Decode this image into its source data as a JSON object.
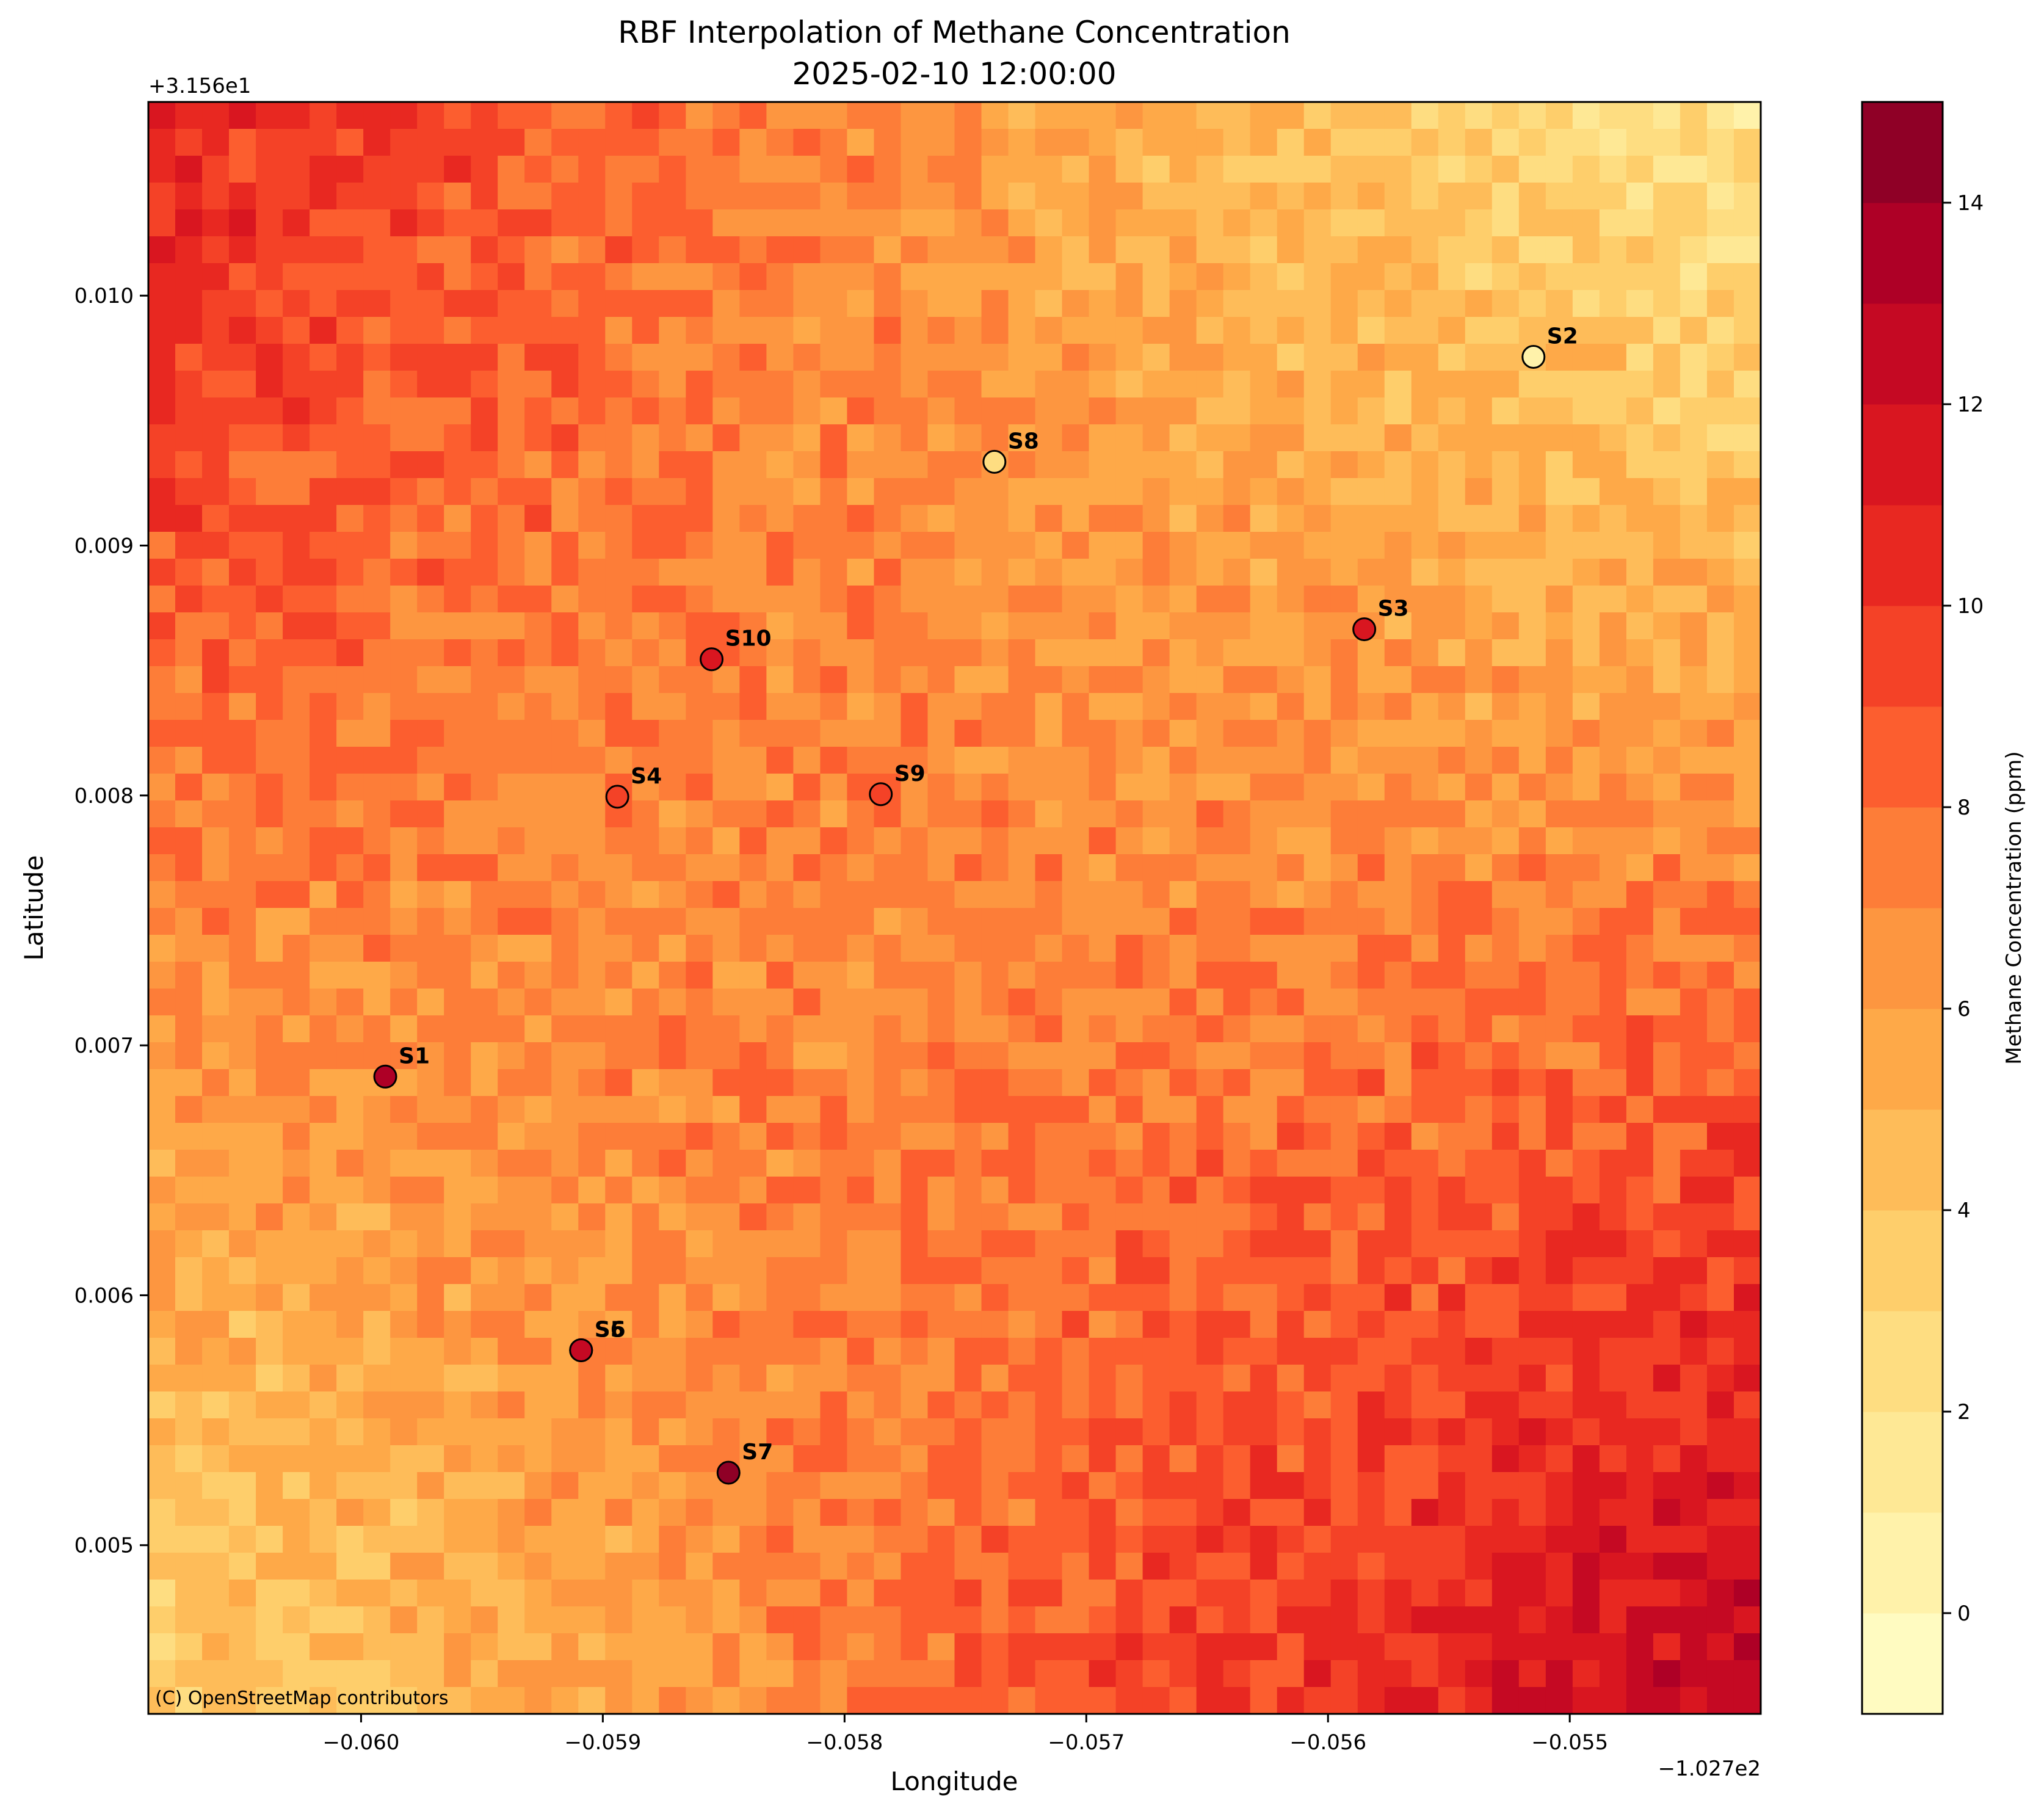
{
  "chart_data": {
    "type": "heatmap",
    "title_line1": "RBF Interpolation of Methane Concentration",
    "title_line2": "2025-02-10 12:00:00",
    "xlabel": "Longitude",
    "ylabel": "Latitude",
    "x_offset_label": "−1.027e2",
    "y_offset_label": "+3.156e1",
    "xlim": [
      -0.06088,
      -0.05421
    ],
    "ylim": [
      0.004325,
      0.010775
    ],
    "x_ticks": [
      -0.06,
      -0.059,
      -0.058,
      -0.057,
      -0.056,
      -0.055
    ],
    "x_tick_labels": [
      "−0.060",
      "−0.059",
      "−0.058",
      "−0.057",
      "−0.056",
      "−0.055"
    ],
    "y_ticks": [
      0.005,
      0.006,
      0.007,
      0.008,
      0.009,
      0.01
    ],
    "y_tick_labels": [
      "0.005",
      "0.006",
      "0.007",
      "0.008",
      "0.009",
      "0.010"
    ],
    "attribution": "(C) OpenStreetMap contributors",
    "colorbar": {
      "label": "Methane Concentration (ppm)",
      "range": [
        -1,
        15
      ],
      "level_step": 1,
      "ticks": [
        0,
        2,
        4,
        6,
        8,
        10,
        12,
        14
      ],
      "tick_labels": [
        "0",
        "2",
        "4",
        "6",
        "8",
        "10",
        "12",
        "14"
      ],
      "colormap": [
        "#ffffcc",
        "#fff1a8",
        "#fee187",
        "#fec965",
        "#feab49",
        "#fd8c3c",
        "#fc5b2e",
        "#ed2e21",
        "#d41020",
        "#b10026",
        "#800026"
      ]
    },
    "field_corners_ppm": {
      "top_left": 11,
      "top_right": 1.5,
      "bottom_left": 3,
      "bottom_right": 13
    },
    "sensors": [
      {
        "label": "S1",
        "lon": -0.0599,
        "lat": 0.006875,
        "value": 13.0
      },
      {
        "label": "S2",
        "lon": -0.05515,
        "lat": 0.009755,
        "value": 0.0
      },
      {
        "label": "S3",
        "lon": -0.05585,
        "lat": 0.008665,
        "value": 11.5
      },
      {
        "label": "S4",
        "lon": -0.05894,
        "lat": 0.007995,
        "value": 9.0
      },
      {
        "label": "S5",
        "lon": -0.05909,
        "lat": 0.00578,
        "value": 12.0
      },
      {
        "label": "S6",
        "lon": -0.05909,
        "lat": 0.00578,
        "value": 12.0
      },
      {
        "label": "S7",
        "lon": -0.05848,
        "lat": 0.00529,
        "value": 14.0
      },
      {
        "label": "S8",
        "lon": -0.05738,
        "lat": 0.009335,
        "value": 2.5
      },
      {
        "label": "S9",
        "lon": -0.05785,
        "lat": 0.008005,
        "value": 9.5
      },
      {
        "label": "S10",
        "lon": -0.05855,
        "lat": 0.008545,
        "value": 11.0
      }
    ]
  }
}
